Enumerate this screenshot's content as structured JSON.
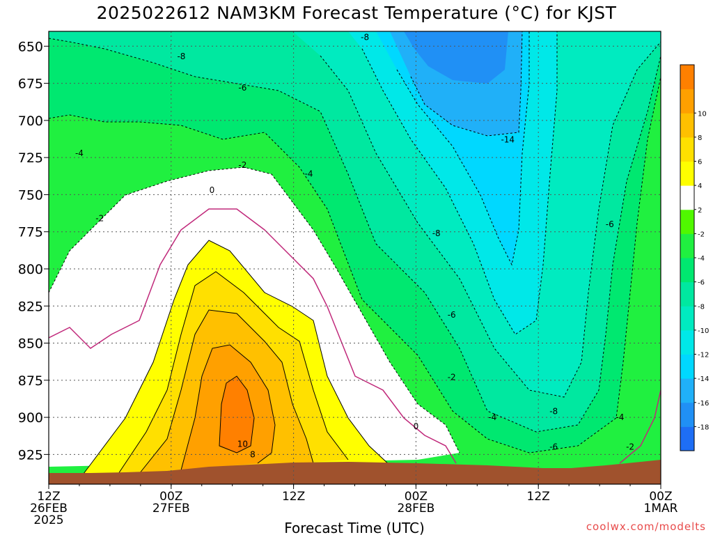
{
  "header": {
    "title": "2025022612 NAM3KM Forecast Temperature (°C) for KJST"
  },
  "footer": {
    "credit": "coolwx.com/modelts"
  },
  "chart_data": {
    "type": "heatmap",
    "title": "2025022612 NAM3KM Forecast Temperature (°C) for KJST",
    "xlabel": "Forecast Time (UTC)",
    "ylabel": "",
    "x_ticks": [
      {
        "hour": 0,
        "lines": [
          "12Z",
          "26FEB",
          "2025"
        ]
      },
      {
        "hour": 12,
        "lines": [
          "00Z",
          "27FEB"
        ]
      },
      {
        "hour": 24,
        "lines": [
          "12Z"
        ]
      },
      {
        "hour": 36,
        "lines": [
          "00Z",
          "28FEB"
        ]
      },
      {
        "hour": 48,
        "lines": [
          "12Z"
        ]
      },
      {
        "hour": 60,
        "lines": [
          "00Z",
          "1MAR"
        ]
      }
    ],
    "xlim": [
      0,
      60
    ],
    "y_ticks": [
      650,
      675,
      700,
      725,
      750,
      775,
      800,
      825,
      850,
      875,
      900,
      925
    ],
    "ylim": [
      640,
      945
    ],
    "grid": true,
    "colorbar": {
      "levels": [
        -20,
        -18,
        -16,
        -14,
        -12,
        -10,
        -8,
        -6,
        -4,
        -2,
        2,
        4,
        6,
        8,
        10,
        12
      ],
      "tick_labels": [
        "-18",
        "-16",
        "-14",
        "-12",
        "-10",
        "-8",
        "-6",
        "-4",
        "-2",
        "2",
        "4",
        "6",
        "8",
        "10"
      ],
      "colors": [
        "#1e6ef5",
        "#2090f5",
        "#20b0f8",
        "#00d8ff",
        "#00e8e8",
        "#00ebc0",
        "#00e8a0",
        "#00e870",
        "#20f040",
        "#50f800",
        "#ffffff",
        "#ffff00",
        "#ffe000",
        "#ffc000",
        "#ffa000",
        "#ff8000"
      ]
    },
    "contour_labels": [
      {
        "text": "-8",
        "x": 31.0,
        "y": 644
      },
      {
        "text": "-8",
        "x": 13.0,
        "y": 657
      },
      {
        "text": "-6",
        "x": 19.0,
        "y": 678
      },
      {
        "text": "-4",
        "x": 3.0,
        "y": 722
      },
      {
        "text": "-14",
        "x": 45.0,
        "y": 713
      },
      {
        "text": "-2",
        "x": 19.0,
        "y": 730
      },
      {
        "text": "-4",
        "x": 25.5,
        "y": 736
      },
      {
        "text": "0",
        "x": 16.0,
        "y": 747
      },
      {
        "text": "-2",
        "x": 5.0,
        "y": 766
      },
      {
        "text": "-8",
        "x": 38.0,
        "y": 776
      },
      {
        "text": "-6",
        "x": 55.0,
        "y": 770
      },
      {
        "text": "-6",
        "x": 39.5,
        "y": 831
      },
      {
        "text": "-2",
        "x": 39.5,
        "y": 873
      },
      {
        "text": "-4",
        "x": 43.5,
        "y": 900
      },
      {
        "text": "-8",
        "x": 49.5,
        "y": 896
      },
      {
        "text": "-4",
        "x": 56.0,
        "y": 900
      },
      {
        "text": "0",
        "x": 36.0,
        "y": 906
      },
      {
        "text": "10",
        "x": 19.0,
        "y": 918
      },
      {
        "text": "8",
        "x": 20.0,
        "y": 925
      },
      {
        "text": "-6",
        "x": 49.5,
        "y": 920
      },
      {
        "text": "-2",
        "x": 57.0,
        "y": 920
      }
    ]
  }
}
